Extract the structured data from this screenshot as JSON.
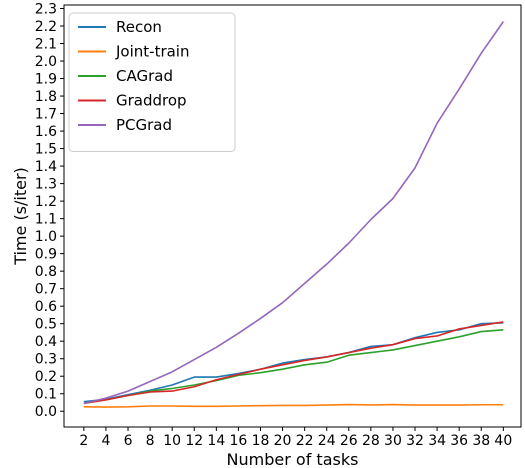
{
  "chart_data": {
    "type": "line",
    "xlabel": "Number of tasks",
    "ylabel": "Time (s/iter)",
    "x": [
      2,
      4,
      6,
      8,
      10,
      12,
      14,
      16,
      18,
      20,
      22,
      24,
      26,
      28,
      30,
      32,
      34,
      36,
      38,
      40
    ],
    "xticks": [
      "2",
      "4",
      "6",
      "8",
      "10",
      "12",
      "14",
      "16",
      "18",
      "20",
      "22",
      "24",
      "26",
      "28",
      "30",
      "32",
      "34",
      "36",
      "38",
      "40"
    ],
    "xlim": [
      0.2,
      41.6
    ],
    "ylim": [
      -0.09,
      2.32
    ],
    "yticks": [
      "0.0",
      "0.1",
      "0.2",
      "0.3",
      "0.4",
      "0.5",
      "0.6",
      "0.7",
      "0.8",
      "0.9",
      "1.0",
      "1.1",
      "1.2",
      "1.3",
      "1.4",
      "1.5",
      "1.6",
      "1.7",
      "1.8",
      "1.9",
      "2.0",
      "2.1",
      "2.2",
      "2.3"
    ],
    "ytick_values": [
      0.0,
      0.1,
      0.2,
      0.3,
      0.4,
      0.5,
      0.6,
      0.7,
      0.8,
      0.9,
      1.0,
      1.1,
      1.2,
      1.3,
      1.4,
      1.5,
      1.6,
      1.7,
      1.8,
      1.9,
      2.0,
      2.1,
      2.2,
      2.3
    ],
    "grid": false,
    "legend_position": "top-left",
    "series": [
      {
        "name": "Recon",
        "color": "#1f77b4",
        "values": [
          0.055,
          0.068,
          0.095,
          0.12,
          0.15,
          0.195,
          0.195,
          0.215,
          0.24,
          0.275,
          0.295,
          0.31,
          0.335,
          0.37,
          0.38,
          0.42,
          0.45,
          0.465,
          0.5,
          0.505
        ]
      },
      {
        "name": "Joint-train",
        "color": "#ff7f0e",
        "values": [
          0.025,
          0.024,
          0.025,
          0.03,
          0.03,
          0.028,
          0.028,
          0.03,
          0.032,
          0.033,
          0.033,
          0.035,
          0.038,
          0.036,
          0.038,
          0.035,
          0.035,
          0.035,
          0.037,
          0.037
        ]
      },
      {
        "name": "CAGrad",
        "color": "#2ca02c",
        "values": [
          0.045,
          0.065,
          0.09,
          0.115,
          0.13,
          0.15,
          0.175,
          0.205,
          0.22,
          0.24,
          0.265,
          0.28,
          0.32,
          0.335,
          0.35,
          0.375,
          0.4,
          0.425,
          0.455,
          0.465
        ]
      },
      {
        "name": "Graddrop",
        "color": "#d62728",
        "values": [
          0.045,
          0.065,
          0.09,
          0.11,
          0.115,
          0.14,
          0.18,
          0.21,
          0.24,
          0.265,
          0.29,
          0.31,
          0.335,
          0.36,
          0.38,
          0.415,
          0.43,
          0.47,
          0.49,
          0.51
        ]
      },
      {
        "name": "PCGrad",
        "color": "#9467bd",
        "values": [
          0.045,
          0.075,
          0.115,
          0.17,
          0.225,
          0.295,
          0.365,
          0.445,
          0.53,
          0.62,
          0.73,
          0.84,
          0.96,
          1.095,
          1.215,
          1.39,
          1.645,
          1.84,
          2.045,
          2.225
        ]
      }
    ]
  }
}
